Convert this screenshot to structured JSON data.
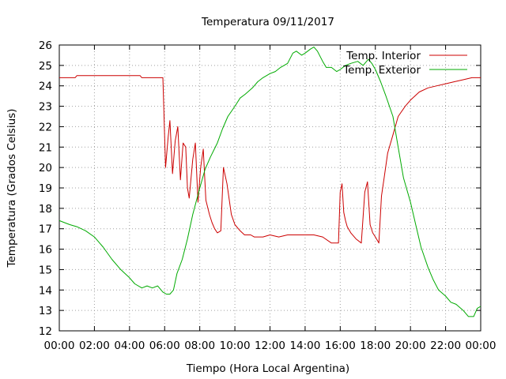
{
  "chart_data": {
    "type": "line",
    "title": "Temperatura 09/11/2017",
    "xlabel": "Tiempo (Hora Local Argentina)",
    "ylabel": "Temperatura (Grados Celsius)",
    "xlim": [
      0,
      24
    ],
    "ylim": [
      12,
      26
    ],
    "x_ticks": [
      {
        "value": 0,
        "label": "00:00"
      },
      {
        "value": 2,
        "label": "02:00"
      },
      {
        "value": 4,
        "label": "04:00"
      },
      {
        "value": 6,
        "label": "06:00"
      },
      {
        "value": 8,
        "label": "08:00"
      },
      {
        "value": 10,
        "label": "10:00"
      },
      {
        "value": 12,
        "label": "12:00"
      },
      {
        "value": 14,
        "label": "14:00"
      },
      {
        "value": 16,
        "label": "16:00"
      },
      {
        "value": 18,
        "label": "18:00"
      },
      {
        "value": 20,
        "label": "20:00"
      },
      {
        "value": 22,
        "label": "22:00"
      },
      {
        "value": 24,
        "label": "00:00"
      }
    ],
    "y_ticks": [
      12,
      13,
      14,
      15,
      16,
      17,
      18,
      19,
      20,
      21,
      22,
      23,
      24,
      25,
      26
    ],
    "grid": true,
    "legend_position": "top-right",
    "series": [
      {
        "name": "Temp. Interior",
        "color": "#cc0000",
        "x": [
          0,
          0.9,
          1,
          2,
          3,
          4,
          4.6,
          4.7,
          5.9,
          5.95,
          6.05,
          6.2,
          6.3,
          6.45,
          6.6,
          6.75,
          6.9,
          7.05,
          7.2,
          7.3,
          7.4,
          7.6,
          7.75,
          7.9,
          8.05,
          8.2,
          8.35,
          8.55,
          8.7,
          8.85,
          9.0,
          9.2,
          9.35,
          9.55,
          9.8,
          10.0,
          10.3,
          10.55,
          10.7,
          10.8,
          10.9,
          11.1,
          11.3,
          11.6,
          12.0,
          12.5,
          13.0,
          13.5,
          13.7,
          14.0,
          14.2,
          14.5,
          15.0,
          15.5,
          15.9,
          16.0,
          16.1,
          16.2,
          16.3,
          16.4,
          16.6,
          16.9,
          17.2,
          17.4,
          17.55,
          17.7,
          17.85,
          18.0,
          18.2,
          18.35,
          18.5,
          18.7,
          19.0,
          19.3,
          19.7,
          20.0,
          20.5,
          21.0,
          21.5,
          22.0,
          22.5,
          23.0,
          23.5,
          24.0
        ],
        "values": [
          24.4,
          24.4,
          24.5,
          24.5,
          24.5,
          24.5,
          24.5,
          24.4,
          24.4,
          23.0,
          20.0,
          21.5,
          22.3,
          19.7,
          21.3,
          22.0,
          19.4,
          21.2,
          21.0,
          19.0,
          18.5,
          20.4,
          21.2,
          18.3,
          20.0,
          20.9,
          18.4,
          17.7,
          17.3,
          17.0,
          16.8,
          16.9,
          20.0,
          19.2,
          17.7,
          17.2,
          16.9,
          16.7,
          16.7,
          16.7,
          16.7,
          16.6,
          16.6,
          16.6,
          16.7,
          16.6,
          16.7,
          16.7,
          16.7,
          16.7,
          16.7,
          16.7,
          16.6,
          16.3,
          16.3,
          18.8,
          19.2,
          17.8,
          17.4,
          17.1,
          16.8,
          16.5,
          16.3,
          18.8,
          19.3,
          17.2,
          16.8,
          16.6,
          16.3,
          18.6,
          19.5,
          20.7,
          21.6,
          22.5,
          23.0,
          23.3,
          23.7,
          23.9,
          24.0,
          24.1,
          24.2,
          24.3,
          24.4,
          24.4
        ]
      },
      {
        "name": "Temp. Exterior",
        "color": "#00aa00",
        "x": [
          0,
          0.3,
          0.6,
          1.0,
          1.5,
          2.0,
          2.5,
          3.0,
          3.5,
          4.0,
          4.3,
          4.7,
          5.0,
          5.3,
          5.6,
          5.9,
          6.1,
          6.3,
          6.5,
          6.7,
          7.0,
          7.3,
          7.6,
          8.0,
          8.3,
          8.6,
          9.0,
          9.3,
          9.6,
          10.0,
          10.3,
          10.6,
          11.0,
          11.3,
          11.6,
          12.0,
          12.3,
          12.6,
          13.0,
          13.3,
          13.5,
          13.8,
          14.0,
          14.3,
          14.5,
          14.7,
          15.0,
          15.2,
          15.5,
          15.8,
          16.0,
          16.3,
          16.6,
          17.0,
          17.3,
          17.6,
          17.8,
          18.0,
          18.3,
          18.6,
          19.0,
          19.3,
          19.6,
          20.0,
          20.3,
          20.6,
          21.0,
          21.3,
          21.6,
          22.0,
          22.3,
          22.6,
          23.0,
          23.3,
          23.6,
          23.8,
          24.0
        ],
        "values": [
          17.4,
          17.3,
          17.2,
          17.1,
          16.9,
          16.6,
          16.1,
          15.5,
          15.0,
          14.6,
          14.3,
          14.1,
          14.2,
          14.1,
          14.2,
          13.9,
          13.8,
          13.8,
          14.0,
          14.8,
          15.5,
          16.5,
          17.7,
          19.0,
          19.9,
          20.5,
          21.2,
          21.9,
          22.5,
          23.0,
          23.4,
          23.6,
          23.9,
          24.2,
          24.4,
          24.6,
          24.7,
          24.9,
          25.1,
          25.6,
          25.7,
          25.5,
          25.6,
          25.8,
          25.9,
          25.7,
          25.2,
          24.9,
          24.9,
          24.7,
          24.8,
          25.0,
          25.1,
          25.2,
          25.0,
          25.3,
          25.1,
          24.8,
          24.2,
          23.5,
          22.5,
          21.0,
          19.5,
          18.3,
          17.2,
          16.1,
          15.1,
          14.5,
          14.0,
          13.7,
          13.4,
          13.3,
          13.0,
          12.7,
          12.7,
          13.1,
          13.2
        ]
      }
    ]
  }
}
